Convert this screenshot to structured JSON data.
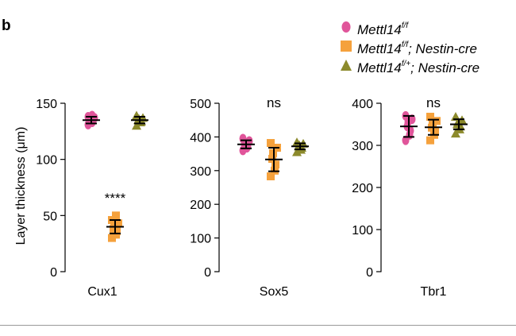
{
  "panel_letter": "b",
  "colors": {
    "wt": "#e0559a",
    "ko": "#f5a13c",
    "het": "#8c8a2c"
  },
  "legend": [
    {
      "key": "wt",
      "marker": "circle",
      "base": "Mettl14",
      "sup": "f/f",
      "suffix": ""
    },
    {
      "key": "ko",
      "marker": "square",
      "base": "Mettl14",
      "sup": "f/f",
      "suffix": "; Nestin-cre"
    },
    {
      "key": "het",
      "marker": "triangle",
      "base": "Mettl14",
      "sup": "f/+",
      "suffix": "; Nestin-cre"
    }
  ],
  "chart_data": {
    "type": "scatter",
    "ylabel": "Layer thickness (μm)",
    "panels": [
      {
        "category": "Cux1",
        "ylim": [
          0,
          150
        ],
        "yticks": [
          0,
          50,
          100,
          150
        ],
        "annotation": "****",
        "groups": [
          {
            "key": "wt",
            "mean": 135,
            "sd": 3,
            "points": [
              131,
              133,
              134,
              135,
              136,
              137,
              138,
              139
            ]
          },
          {
            "key": "ko",
            "mean": 40,
            "sd": 6,
            "points": [
              30,
              33,
              36,
              38,
              41,
              43,
              46,
              50
            ]
          },
          {
            "key": "het",
            "mean": 135,
            "sd": 3,
            "points": [
              130,
              133,
              134,
              135,
              136,
              137,
              139
            ]
          }
        ]
      },
      {
        "category": "Sox5",
        "ylim": [
          0,
          500
        ],
        "yticks": [
          0,
          100,
          200,
          300,
          400,
          500
        ],
        "annotation": "ns",
        "groups": [
          {
            "key": "wt",
            "mean": 378,
            "sd": 12,
            "points": [
              360,
              368,
              372,
              378,
              382,
              388,
              395
            ]
          },
          {
            "key": "ko",
            "mean": 333,
            "sd": 35,
            "points": [
              283,
              300,
              318,
              335,
              352,
              368,
              382
            ]
          },
          {
            "key": "het",
            "mean": 372,
            "sd": 9,
            "points": [
              355,
              362,
              368,
              372,
              376,
              380,
              384
            ]
          }
        ]
      },
      {
        "category": "Tbr1",
        "ylim": [
          0,
          400
        ],
        "yticks": [
          0,
          100,
          200,
          300,
          400
        ],
        "annotation": "ns",
        "groups": [
          {
            "key": "wt",
            "mean": 345,
            "sd": 25,
            "points": [
              312,
              325,
              335,
              345,
              355,
              362,
              370
            ]
          },
          {
            "key": "ko",
            "mean": 343,
            "sd": 18,
            "points": [
              312,
              325,
              335,
              342,
              350,
              358,
              368
            ]
          },
          {
            "key": "het",
            "mean": 350,
            "sd": 12,
            "points": [
              328,
              338,
              345,
              350,
              355,
              360,
              368
            ]
          }
        ]
      }
    ]
  }
}
